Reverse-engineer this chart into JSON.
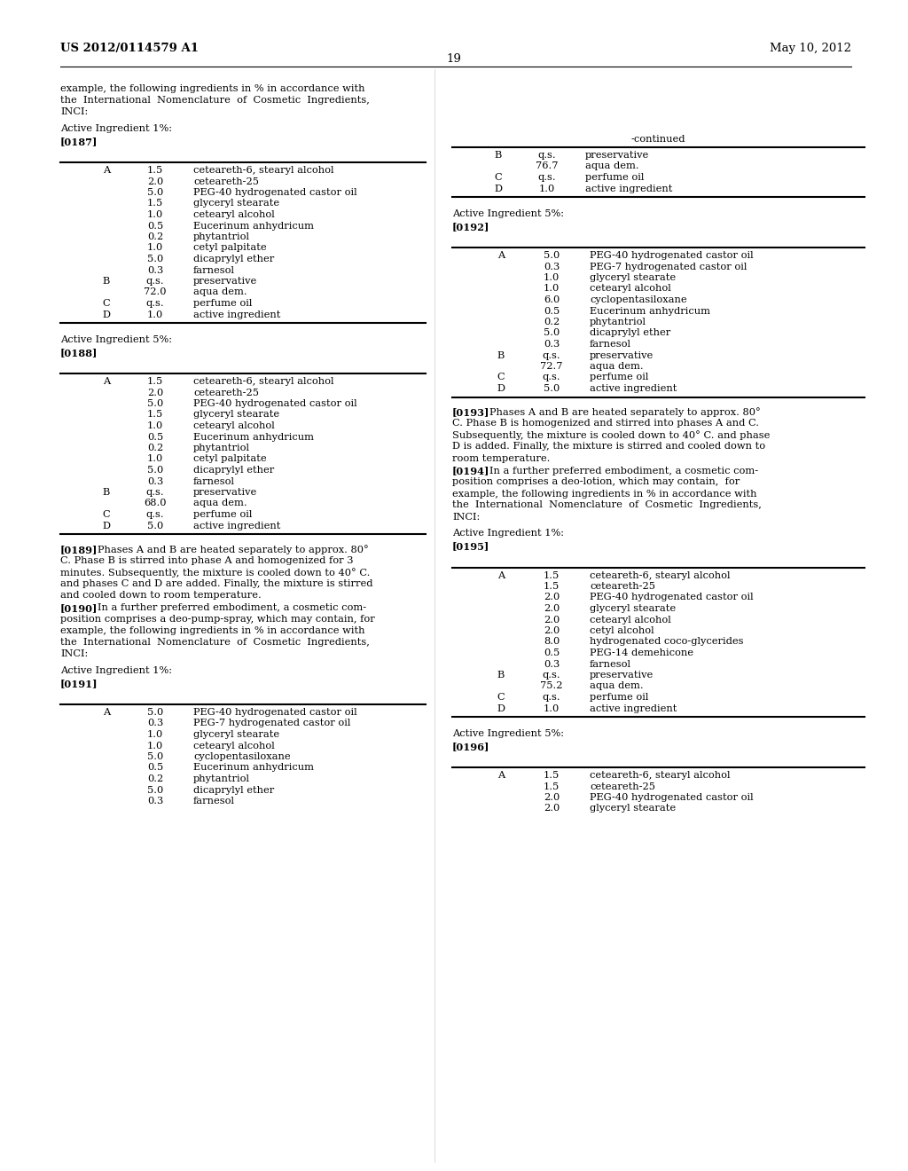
{
  "bg_color": "#ffffff",
  "header_left": "US 2012/0114579 A1",
  "header_right": "May 10, 2012",
  "page_number": "19",
  "left_intro": "example, the following ingredients in % in accordance with\nthe  International  Nomenclature  of  Cosmetic  Ingredients,\nINCI:",
  "table187": {
    "label": "Active Ingredient 1%:",
    "ref": "[0187]",
    "rows": [
      [
        "A",
        "1.5",
        "ceteareth-6, stearyl alcohol"
      ],
      [
        "",
        "2.0",
        "ceteareth-25"
      ],
      [
        "",
        "5.0",
        "PEG-40 hydrogenated castor oil"
      ],
      [
        "",
        "1.5",
        "glyceryl stearate"
      ],
      [
        "",
        "1.0",
        "cetearyl alcohol"
      ],
      [
        "",
        "0.5",
        "Eucerinum anhydricum"
      ],
      [
        "",
        "0.2",
        "phytantriol"
      ],
      [
        "",
        "1.0",
        "cetyl palpitate"
      ],
      [
        "",
        "5.0",
        "dicaprylyl ether"
      ],
      [
        "",
        "0.3",
        "farnesol"
      ],
      [
        "B",
        "q.s.",
        "preservative"
      ],
      [
        "",
        "72.0",
        "aqua dem."
      ],
      [
        "C",
        "q.s.",
        "perfume oil"
      ],
      [
        "D",
        "1.0",
        "active ingredient"
      ]
    ]
  },
  "table188": {
    "label": "Active Ingredient 5%:",
    "ref": "[0188]",
    "rows": [
      [
        "A",
        "1.5",
        "ceteareth-6, stearyl alcohol"
      ],
      [
        "",
        "2.0",
        "ceteareth-25"
      ],
      [
        "",
        "5.0",
        "PEG-40 hydrogenated castor oil"
      ],
      [
        "",
        "1.5",
        "glyceryl stearate"
      ],
      [
        "",
        "1.0",
        "cetearyl alcohol"
      ],
      [
        "",
        "0.5",
        "Eucerinum anhydricum"
      ],
      [
        "",
        "0.2",
        "phytantriol"
      ],
      [
        "",
        "1.0",
        "cetyl palpitate"
      ],
      [
        "",
        "5.0",
        "dicaprylyl ether"
      ],
      [
        "",
        "0.3",
        "farnesol"
      ],
      [
        "B",
        "q.s.",
        "preservative"
      ],
      [
        "",
        "68.0",
        "aqua dem."
      ],
      [
        "C",
        "q.s.",
        "perfume oil"
      ],
      [
        "D",
        "5.0",
        "active ingredient"
      ]
    ]
  },
  "para189": {
    "ref": "[0189]",
    "text": "    Phases A and B are heated separately to approx. 80°\nC. Phase B is stirred into phase A and homogenized for 3\nminutes. Subsequently, the mixture is cooled down to 40° C.\nand phases C and D are added. Finally, the mixture is stirred\nand cooled down to room temperature."
  },
  "para190": {
    "ref": "[0190]",
    "text": "    In a further preferred embodiment, a cosmetic com-\nposition comprises a deo-pump-spray, which may contain, for\nexample, the following ingredients in % in accordance with\nthe  International  Nomenclature  of  Cosmetic  Ingredients,\nINCI:"
  },
  "table191": {
    "label": "Active Ingredient 1%:",
    "ref": "[0191]",
    "rows": [
      [
        "A",
        "5.0",
        "PEG-40 hydrogenated castor oil"
      ],
      [
        "",
        "0.3",
        "PEG-7 hydrogenated castor oil"
      ],
      [
        "",
        "1.0",
        "glyceryl stearate"
      ],
      [
        "",
        "1.0",
        "cetearyl alcohol"
      ],
      [
        "",
        "5.0",
        "cyclopentasiloxane"
      ],
      [
        "",
        "0.5",
        "Eucerinum anhydricum"
      ],
      [
        "",
        "0.2",
        "phytantriol"
      ],
      [
        "",
        "5.0",
        "dicaprylyl ether"
      ],
      [
        "",
        "0.3",
        "farnesol"
      ]
    ],
    "partial": true
  },
  "right_continued": {
    "label": "-continued",
    "rows": [
      [
        "B",
        "q.s.",
        "preservative"
      ],
      [
        "",
        "76.7",
        "aqua dem."
      ],
      [
        "C",
        "q.s.",
        "perfume oil"
      ],
      [
        "D",
        "1.0",
        "active ingredient"
      ]
    ]
  },
  "table192": {
    "label": "Active Ingredient 5%:",
    "ref": "[0192]",
    "rows": [
      [
        "A",
        "5.0",
        "PEG-40 hydrogenated castor oil"
      ],
      [
        "",
        "0.3",
        "PEG-7 hydrogenated castor oil"
      ],
      [
        "",
        "1.0",
        "glyceryl stearate"
      ],
      [
        "",
        "1.0",
        "cetearyl alcohol"
      ],
      [
        "",
        "6.0",
        "cyclopentasiloxane"
      ],
      [
        "",
        "0.5",
        "Eucerinum anhydricum"
      ],
      [
        "",
        "0.2",
        "phytantriol"
      ],
      [
        "",
        "5.0",
        "dicaprylyl ether"
      ],
      [
        "",
        "0.3",
        "farnesol"
      ],
      [
        "B",
        "q.s.",
        "preservative"
      ],
      [
        "",
        "72.7",
        "aqua dem."
      ],
      [
        "C",
        "q.s.",
        "perfume oil"
      ],
      [
        "D",
        "5.0",
        "active ingredient"
      ]
    ]
  },
  "para193": {
    "ref": "[0193]",
    "text": "    Phases A and B are heated separately to approx. 80°\nC. Phase B is homogenized and stirred into phases A and C.\nSubsequently, the mixture is cooled down to 40° C. and phase\nD is added. Finally, the mixture is stirred and cooled down to\nroom temperature."
  },
  "para194": {
    "ref": "[0194]",
    "text": "    In a further preferred embodiment, a cosmetic com-\nposition comprises a deo-lotion, which may contain,  for\nexample, the following ingredients in % in accordance with\nthe  International  Nomenclature  of  Cosmetic  Ingredients,\nINCI:"
  },
  "table195": {
    "label": "Active Ingredient 1%:",
    "ref": "[0195]",
    "rows": [
      [
        "A",
        "1.5",
        "ceteareth-6, stearyl alcohol"
      ],
      [
        "",
        "1.5",
        "ceteareth-25"
      ],
      [
        "",
        "2.0",
        "PEG-40 hydrogenated castor oil"
      ],
      [
        "",
        "2.0",
        "glyceryl stearate"
      ],
      [
        "",
        "2.0",
        "cetearyl alcohol"
      ],
      [
        "",
        "2.0",
        "cetyl alcohol"
      ],
      [
        "",
        "8.0",
        "hydrogenated coco-glycerides"
      ],
      [
        "",
        "0.5",
        "PEG-14 demehicone"
      ],
      [
        "",
        "0.3",
        "farnesol"
      ],
      [
        "B",
        "q.s.",
        "preservative"
      ],
      [
        "",
        "75.2",
        "aqua dem."
      ],
      [
        "C",
        "q.s.",
        "perfume oil"
      ],
      [
        "D",
        "1.0",
        "active ingredient"
      ]
    ]
  },
  "table196": {
    "label": "Active Ingredient 5%:",
    "ref": "[0196]",
    "rows": [
      [
        "A",
        "1.5",
        "ceteareth-6, stearyl alcohol"
      ],
      [
        "",
        "1.5",
        "ceteareth-25"
      ],
      [
        "",
        "2.0",
        "PEG-40 hydrogenated castor oil"
      ],
      [
        "",
        "2.0",
        "glyceryl stearate"
      ]
    ],
    "partial": true
  }
}
